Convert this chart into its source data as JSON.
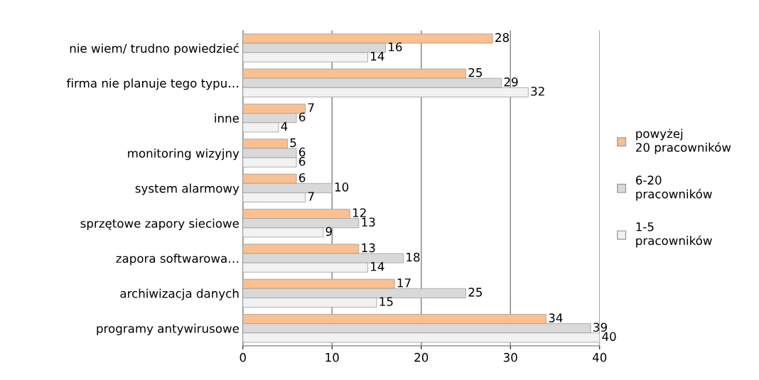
{
  "chart_data": {
    "type": "bar",
    "orientation": "horizontal",
    "categories": [
      "nie wiem/ trudno powiedzieć",
      "firma nie planuje tego typu…",
      "inne",
      "monitoring wizyjny",
      "system alarmowy",
      "sprzętowe zapory sieciowe",
      "zapora softwarowa…",
      "archiwizacja danych",
      "programy antywirusowe"
    ],
    "series": [
      {
        "name": "powyżej 20 pracowników",
        "color": "#fac090",
        "values": [
          28,
          25,
          7,
          5,
          6,
          12,
          13,
          17,
          34
        ]
      },
      {
        "name": "6-20 pracowników",
        "color": "#d9d9d9",
        "values": [
          16,
          29,
          6,
          6,
          10,
          13,
          18,
          25,
          39
        ]
      },
      {
        "name": "1-5 pracowników",
        "color": "#f2f2f2",
        "values": [
          14,
          32,
          4,
          6,
          7,
          9,
          14,
          15,
          40
        ]
      }
    ],
    "xlim": [
      0,
      40
    ],
    "xticks": [
      0,
      10,
      20,
      30,
      40
    ],
    "grid": "x",
    "legend": "right",
    "data_labels": true
  }
}
